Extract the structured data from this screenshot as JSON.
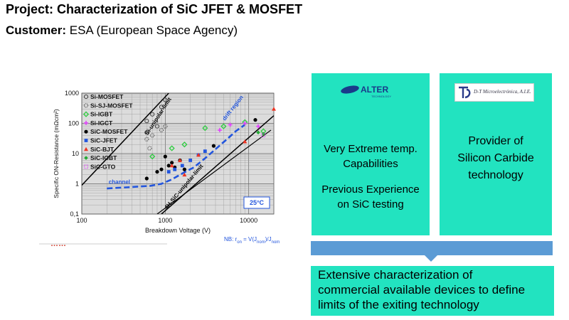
{
  "header": {
    "title": "Project: Characterization of SiC JFET & MOSFET",
    "customer_label": "Customer:",
    "customer_value": "ESA (European Space Agency)"
  },
  "chart_data": {
    "type": "scatter",
    "xscale": "log",
    "yscale": "log",
    "xlim": [
      100,
      20000
    ],
    "ylim": [
      0.1,
      1000
    ],
    "xlabel": "Breakdown Voltage (V)",
    "ylabel": "Specific ON-Resistance (mΩcm²)",
    "x_ticks": [
      "100",
      "1000",
      "10000"
    ],
    "y_ticks": [
      "0,1",
      "1",
      "10",
      "100",
      "1000"
    ],
    "grid": true,
    "legend_position": "top-left",
    "badge": "25°C",
    "annotations": {
      "si_limit": "Si-unipolar-limit",
      "sic_limit": "4H-SiC-unipolar-limit",
      "drift": "drift region",
      "channel": "channel"
    },
    "note": "NB: r",
    "note_sub": "on",
    "note_rest": " = V(J",
    "note_sub2": "nom",
    "note_rest2": ")/J",
    "note_sub3": "nom",
    "series": [
      {
        "name": "Si-MOSFET",
        "marker": "circle-open",
        "color": "#333333",
        "points": [
          [
            600,
            120
          ],
          [
            700,
            200
          ],
          [
            900,
            350
          ],
          [
            1000,
            600
          ],
          [
            800,
            80
          ],
          [
            600,
            50
          ]
        ]
      },
      {
        "name": "Si-SJ-MOSFET",
        "marker": "circle-dashed",
        "color": "#333333",
        "points": [
          [
            600,
            30
          ],
          [
            650,
            15
          ],
          [
            700,
            40
          ],
          [
            900,
            60
          ],
          [
            1000,
            80
          ]
        ]
      },
      {
        "name": "Si-IGBT",
        "marker": "diamond",
        "color": "#2ecc40",
        "points": [
          [
            700,
            8
          ],
          [
            1200,
            15
          ],
          [
            1700,
            20
          ],
          [
            3000,
            70
          ],
          [
            5000,
            80
          ],
          [
            9000,
            110
          ],
          [
            15000,
            55
          ]
        ]
      },
      {
        "name": "Si-IGCT",
        "marker": "plus",
        "color": "#e040fb",
        "points": [
          [
            4500,
            60
          ],
          [
            6000,
            90
          ],
          [
            9000,
            100
          ],
          [
            13000,
            80
          ]
        ]
      },
      {
        "name": "SiC-MOSFET",
        "marker": "circle",
        "color": "#000000",
        "points": [
          [
            600,
            1.5
          ],
          [
            800,
            2.5
          ],
          [
            900,
            3
          ],
          [
            1000,
            8
          ],
          [
            1100,
            4
          ],
          [
            1200,
            5
          ],
          [
            1300,
            3.5
          ],
          [
            1500,
            6
          ],
          [
            1700,
            3
          ],
          [
            3800,
            18
          ],
          [
            12000,
            130
          ]
        ]
      },
      {
        "name": "SiC-JFET",
        "marker": "square",
        "color": "#2255dd",
        "points": [
          [
            1100,
            2.5
          ],
          [
            1300,
            3
          ],
          [
            1600,
            4
          ],
          [
            2000,
            6
          ],
          [
            2500,
            9
          ],
          [
            3000,
            12
          ]
        ]
      },
      {
        "name": "SiC-BJT",
        "marker": "triangle",
        "color": "#ee3322",
        "points": [
          [
            1200,
            4
          ],
          [
            1500,
            6
          ],
          [
            1700,
            2
          ],
          [
            2500,
            9
          ],
          [
            9000,
            25
          ],
          [
            20000,
            300
          ]
        ]
      },
      {
        "name": "SiC-IGBT",
        "marker": "diamond-small",
        "color": "#22aa33",
        "points": [
          [
            13000,
            50
          ],
          [
            15000,
            45
          ]
        ]
      },
      {
        "name": "SiC-GTO",
        "marker": "square-dotted",
        "color": "#e040fb",
        "points": [
          [
            15000,
            40
          ]
        ]
      }
    ]
  },
  "red_mark": "……",
  "panels": {
    "alter": {
      "logo_text": "ALTER",
      "logo_sub": "TECHNOLOGY",
      "line1": [
        "Very Extreme temp.",
        "Capabilities"
      ],
      "line2": [
        "Previous Experience",
        "on SiC testing"
      ]
    },
    "dt": {
      "logo_text": "D-T Microelectrónica, A.I.E.",
      "text": [
        "Provider of",
        "Silicon Carbide",
        "technology"
      ]
    }
  },
  "bottom": {
    "text": [
      "Extensive characterization of",
      "commercial available devices to define",
      "limits of the exiting technology"
    ]
  },
  "colors": {
    "panel": "#22e3c0",
    "arrow": "#5b9bd5",
    "chart_blue": "#2255dd"
  }
}
